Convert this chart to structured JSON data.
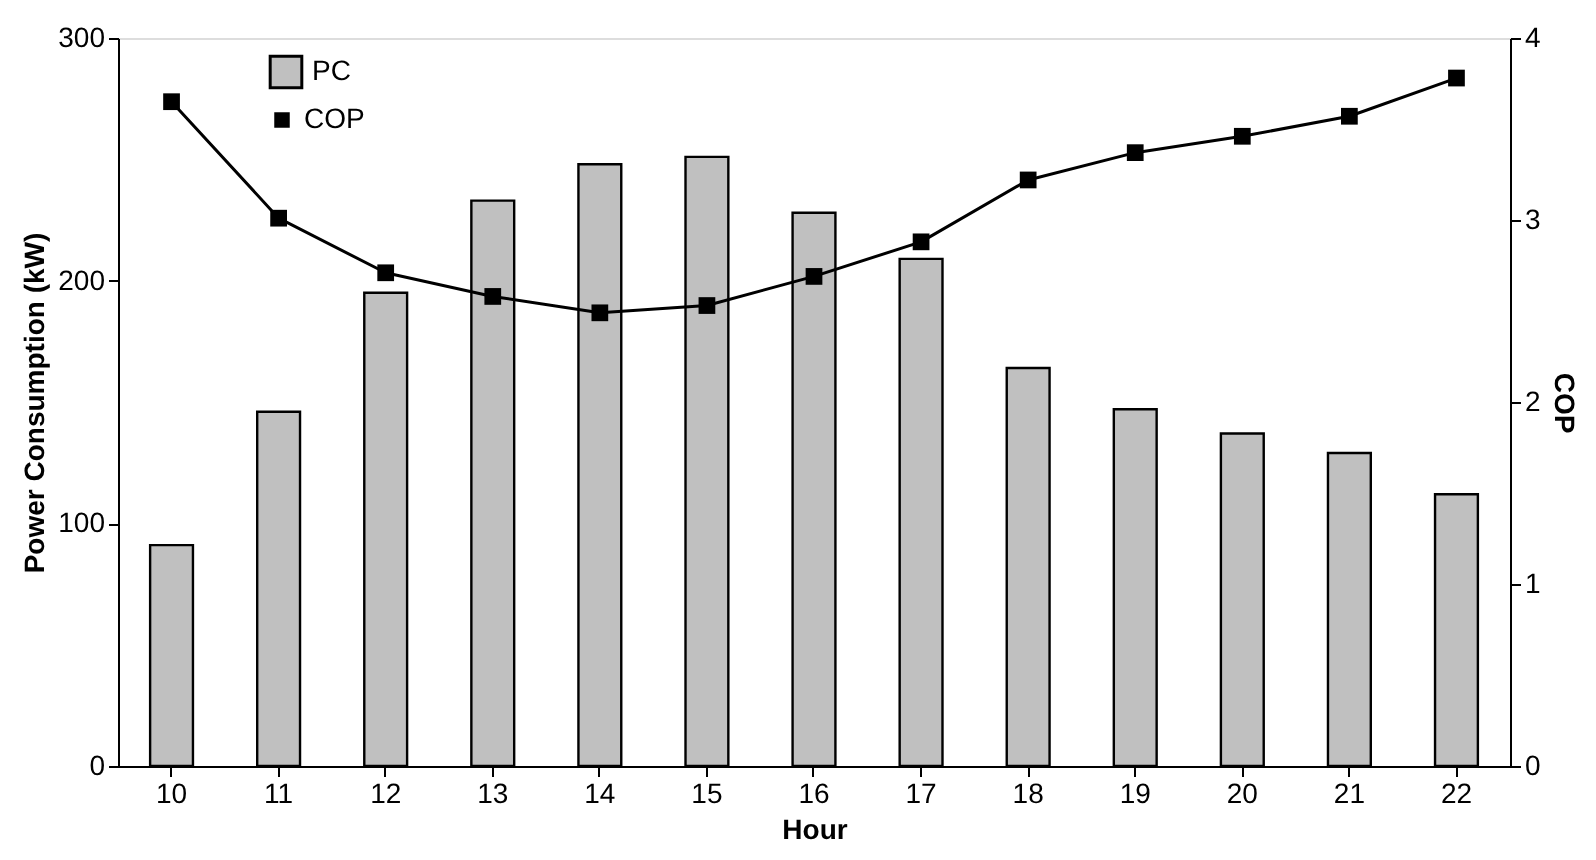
{
  "chart_data": {
    "type": "bar",
    "xlabel": "Hour",
    "ylabel": "Power Consumption (kW)",
    "y2label": "COP",
    "categories": [
      "10",
      "11",
      "12",
      "13",
      "14",
      "15",
      "16",
      "17",
      "18",
      "19",
      "20",
      "21",
      "22"
    ],
    "series": [
      {
        "name": "PC",
        "color": "#c0c0c0",
        "values": [
          91,
          146,
          195,
          233,
          248,
          251,
          228,
          209,
          164,
          147,
          137,
          129,
          112
        ]
      },
      {
        "name": "COP",
        "type": "line",
        "axis": "y2",
        "color": "#000000",
        "values": [
          3.65,
          3.01,
          2.71,
          2.58,
          2.49,
          2.53,
          2.69,
          2.88,
          3.22,
          3.37,
          3.46,
          3.57,
          3.78
        ]
      }
    ],
    "ylim": [
      0,
      300
    ],
    "yticks": [
      0,
      100,
      200,
      300
    ],
    "y2lim": [
      0,
      4
    ],
    "y2ticks": [
      0,
      1,
      2,
      3,
      4
    ],
    "marker": "square",
    "line_style": "solid",
    "legend": "top left"
  }
}
